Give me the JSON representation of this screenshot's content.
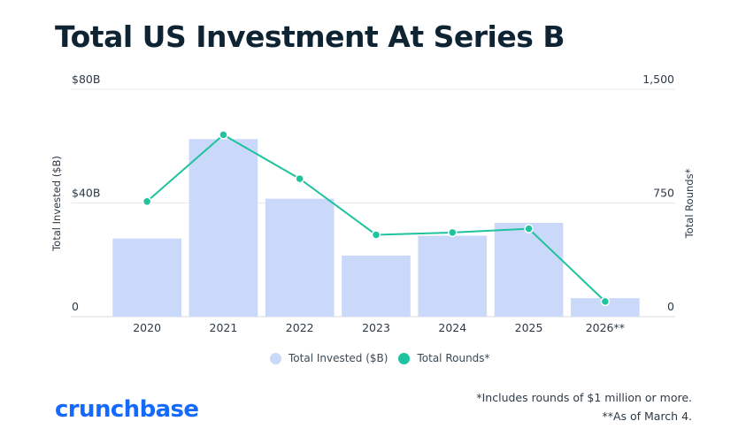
{
  "title": "Total US Investment At Series B",
  "chart_data": {
    "type": "bar",
    "categories": [
      "2020",
      "2021",
      "2022",
      "2023",
      "2024",
      "2025",
      "2026**"
    ],
    "series": [
      {
        "name": "Total Invested ($B)",
        "type": "bar",
        "axis": "left",
        "color": "#cad9fa",
        "values": [
          27.5,
          62.5,
          41.5,
          21.5,
          28.5,
          33.0,
          6.5
        ]
      },
      {
        "name": "Total Rounds*",
        "type": "line",
        "axis": "right",
        "color": "#1fc39e",
        "values": [
          760,
          1200,
          910,
          540,
          555,
          580,
          100
        ]
      }
    ],
    "y_left": {
      "label": "Total Invested ($B)",
      "ylim": [
        0,
        80
      ],
      "ticks": [
        0,
        40,
        80
      ],
      "tick_labels": [
        "0",
        "$40B",
        "$80B"
      ]
    },
    "y_right": {
      "label": "Total Rounds*",
      "ylim": [
        0,
        1500
      ],
      "ticks": [
        0,
        750,
        1500
      ],
      "tick_labels": [
        "0",
        "750",
        "1,500"
      ]
    },
    "grid": true,
    "legend_position": "bottom"
  },
  "legend": {
    "bar_label": "Total Invested ($B)",
    "line_label": "Total Rounds*"
  },
  "footnotes": {
    "note1": "*Includes rounds of $1 million or more.",
    "note2": "**As of March 4."
  },
  "brand": {
    "logo_text": "crunchbase",
    "logo_color": "#146aff"
  }
}
